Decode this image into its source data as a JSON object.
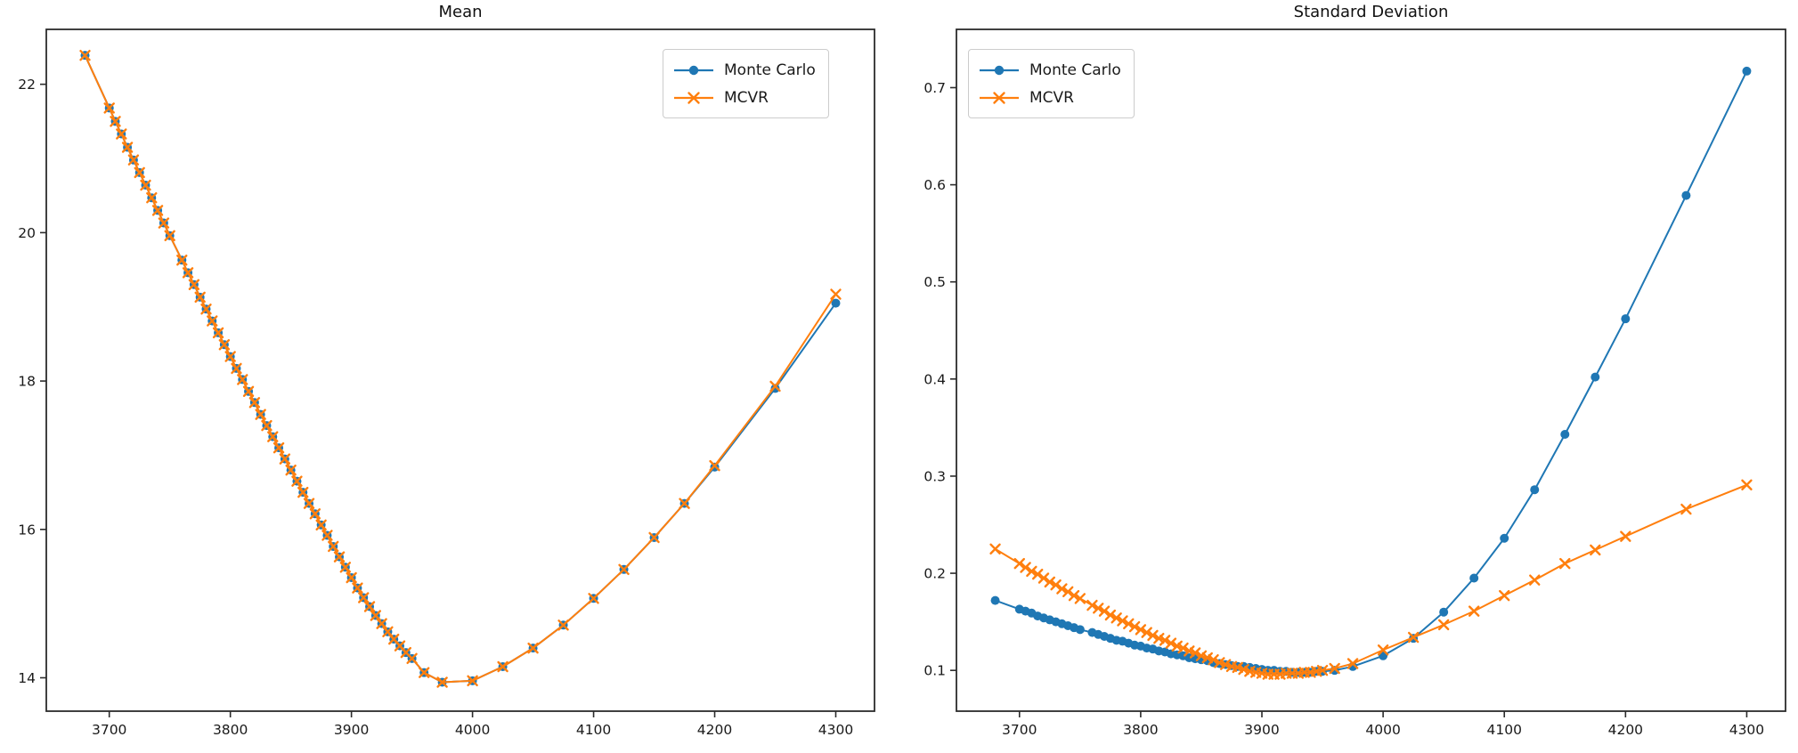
{
  "figure": {
    "background": "#ffffff"
  },
  "chart_data": [
    {
      "type": "line",
      "title": "Mean",
      "grid": false,
      "legend_position": "upper right",
      "xlim": [
        3648,
        4332
      ],
      "ylim": [
        13.55,
        22.74
      ],
      "xticks": [
        3700,
        3800,
        3900,
        4000,
        4100,
        4200,
        4300
      ],
      "yticks": [
        14,
        16,
        18,
        20,
        22
      ],
      "xlabel": "",
      "ylabel": "",
      "x": [
        3680,
        3700,
        3705,
        3710,
        3715,
        3720,
        3725,
        3730,
        3735,
        3740,
        3745,
        3750,
        3760,
        3765,
        3770,
        3775,
        3780,
        3785,
        3790,
        3795,
        3800,
        3805,
        3810,
        3815,
        3820,
        3825,
        3830,
        3835,
        3840,
        3845,
        3850,
        3855,
        3860,
        3865,
        3870,
        3875,
        3880,
        3885,
        3890,
        3895,
        3900,
        3905,
        3910,
        3915,
        3920,
        3925,
        3930,
        3935,
        3940,
        3945,
        3950,
        3960,
        3975,
        4000,
        4025,
        4050,
        4075,
        4100,
        4125,
        4150,
        4175,
        4200,
        4250,
        4300
      ],
      "series": [
        {
          "name": "Monte Carlo",
          "color": "#1f77b4",
          "marker": "circle",
          "values": [
            22.39,
            21.68,
            21.5,
            21.33,
            21.15,
            20.98,
            20.81,
            20.64,
            20.47,
            20.3,
            20.13,
            19.96,
            19.63,
            19.46,
            19.3,
            19.13,
            18.97,
            18.81,
            18.65,
            18.49,
            18.33,
            18.17,
            18.02,
            17.86,
            17.71,
            17.55,
            17.4,
            17.25,
            17.1,
            16.95,
            16.8,
            16.65,
            16.5,
            16.35,
            16.21,
            16.06,
            15.92,
            15.77,
            15.63,
            15.49,
            15.35,
            15.21,
            15.08,
            14.96,
            14.84,
            14.73,
            14.62,
            14.52,
            14.43,
            14.34,
            14.26,
            14.07,
            13.94,
            13.96,
            14.15,
            14.4,
            14.71,
            15.07,
            15.46,
            15.89,
            16.35,
            16.84,
            17.9,
            19.05
          ]
        },
        {
          "name": "MCVR",
          "color": "#ff7f0e",
          "marker": "x",
          "values": [
            22.39,
            21.68,
            21.5,
            21.33,
            21.15,
            20.98,
            20.81,
            20.64,
            20.47,
            20.3,
            20.13,
            19.96,
            19.63,
            19.46,
            19.3,
            19.13,
            18.97,
            18.81,
            18.65,
            18.49,
            18.33,
            18.17,
            18.02,
            17.86,
            17.71,
            17.55,
            17.4,
            17.25,
            17.1,
            16.95,
            16.8,
            16.65,
            16.5,
            16.35,
            16.21,
            16.06,
            15.92,
            15.77,
            15.63,
            15.49,
            15.35,
            15.21,
            15.08,
            14.96,
            14.84,
            14.73,
            14.62,
            14.52,
            14.43,
            14.34,
            14.26,
            14.07,
            13.94,
            13.96,
            14.15,
            14.4,
            14.71,
            15.07,
            15.46,
            15.89,
            16.35,
            16.86,
            17.93,
            19.17
          ]
        }
      ]
    },
    {
      "type": "line",
      "title": "Standard Deviation",
      "grid": false,
      "legend_position": "upper left",
      "xlim": [
        3648,
        4332
      ],
      "ylim": [
        0.058,
        0.76
      ],
      "xticks": [
        3700,
        3800,
        3900,
        4000,
        4100,
        4200,
        4300
      ],
      "yticks": [
        0.1,
        0.2,
        0.3,
        0.4,
        0.5,
        0.6,
        0.7
      ],
      "xlabel": "",
      "ylabel": "",
      "x": [
        3680,
        3700,
        3705,
        3710,
        3715,
        3720,
        3725,
        3730,
        3735,
        3740,
        3745,
        3750,
        3760,
        3765,
        3770,
        3775,
        3780,
        3785,
        3790,
        3795,
        3800,
        3805,
        3810,
        3815,
        3820,
        3825,
        3830,
        3835,
        3840,
        3845,
        3850,
        3855,
        3860,
        3865,
        3870,
        3875,
        3880,
        3885,
        3890,
        3895,
        3900,
        3905,
        3910,
        3915,
        3920,
        3925,
        3930,
        3935,
        3940,
        3945,
        3950,
        3960,
        3975,
        4000,
        4025,
        4050,
        4075,
        4100,
        4125,
        4150,
        4175,
        4200,
        4250,
        4300
      ],
      "series": [
        {
          "name": "Monte Carlo",
          "color": "#1f77b4",
          "marker": "circle",
          "values": [
            0.172,
            0.163,
            0.161,
            0.159,
            0.156,
            0.154,
            0.152,
            0.15,
            0.148,
            0.146,
            0.144,
            0.142,
            0.139,
            0.137,
            0.135,
            0.133,
            0.131,
            0.13,
            0.128,
            0.126,
            0.125,
            0.123,
            0.122,
            0.12,
            0.119,
            0.117,
            0.116,
            0.115,
            0.113,
            0.112,
            0.111,
            0.11,
            0.108,
            0.107,
            0.106,
            0.105,
            0.104,
            0.104,
            0.103,
            0.102,
            0.101,
            0.1,
            0.1,
            0.099,
            0.099,
            0.098,
            0.098,
            0.098,
            0.098,
            0.099,
            0.099,
            0.1,
            0.104,
            0.115,
            0.133,
            0.16,
            0.195,
            0.236,
            0.286,
            0.343,
            0.402,
            0.462,
            0.589,
            0.717
          ]
        },
        {
          "name": "MCVR",
          "color": "#ff7f0e",
          "marker": "x",
          "values": [
            0.225,
            0.21,
            0.206,
            0.202,
            0.199,
            0.195,
            0.191,
            0.188,
            0.184,
            0.181,
            0.177,
            0.174,
            0.167,
            0.164,
            0.161,
            0.157,
            0.154,
            0.151,
            0.148,
            0.145,
            0.142,
            0.139,
            0.136,
            0.133,
            0.131,
            0.128,
            0.125,
            0.123,
            0.12,
            0.118,
            0.115,
            0.113,
            0.111,
            0.108,
            0.106,
            0.104,
            0.103,
            0.101,
            0.099,
            0.098,
            0.097,
            0.096,
            0.096,
            0.096,
            0.097,
            0.097,
            0.097,
            0.098,
            0.098,
            0.099,
            0.1,
            0.102,
            0.107,
            0.121,
            0.134,
            0.147,
            0.161,
            0.177,
            0.193,
            0.21,
            0.224,
            0.238,
            0.266,
            0.291
          ]
        }
      ]
    }
  ]
}
